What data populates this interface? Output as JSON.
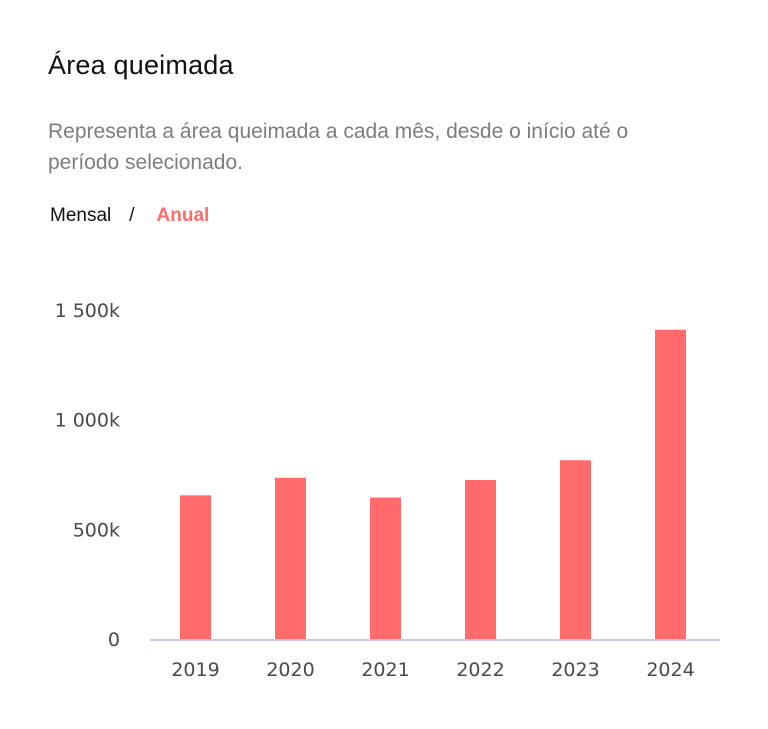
{
  "header": {
    "title": "Área queimada",
    "subtitle": "Representa a área queimada a cada mês, desde o início até o período selecionado."
  },
  "toggle": {
    "monthly_label": "Mensal",
    "separator": "/",
    "annual_label": "Anual",
    "active": "Anual"
  },
  "colors": {
    "bar": "#ff6b6b",
    "active_toggle": "#ff6b6b",
    "axis_line": "#c9c9ec"
  },
  "chart_data": {
    "type": "bar",
    "title": "Área queimada",
    "xlabel": "",
    "ylabel": "",
    "categories": [
      "2019",
      "2020",
      "2021",
      "2022",
      "2023",
      "2024"
    ],
    "values": [
      655,
      735,
      645,
      725,
      815,
      1410
    ],
    "unit": "k",
    "ylim": [
      0,
      1500
    ],
    "yticks": [
      {
        "value": 0,
        "label": "0"
      },
      {
        "value": 500,
        "label": "500k"
      },
      {
        "value": 1000,
        "label": "1 000k"
      },
      {
        "value": 1500,
        "label": "1 500k"
      }
    ],
    "grid": false,
    "legend": "none"
  }
}
